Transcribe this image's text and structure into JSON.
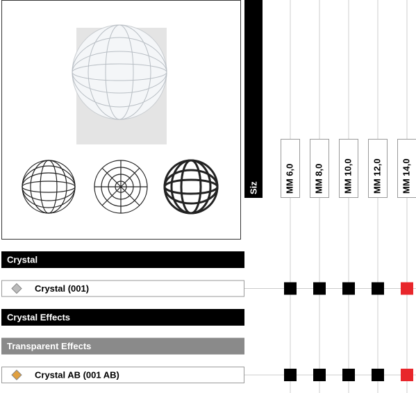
{
  "size_header": "Siz",
  "sizes": [
    "MM 6,0",
    "MM 8,0",
    "MM 10,0",
    "MM 12,0",
    "MM 14,0"
  ],
  "rows": [
    {
      "label": "Crystal",
      "color": "#000000"
    },
    {
      "label": "Crystal (001)",
      "cells": [
        "#000000",
        "#000000",
        "#000000",
        "#000000",
        "#e8262b"
      ]
    },
    {
      "label": "Crystal Effects",
      "color": "#000000"
    },
    {
      "label": "Transparent Effects",
      "color": "#8a8a8a"
    },
    {
      "label": "Crystal AB (001 AB)",
      "cells": [
        "#000000",
        "#000000",
        "#000000",
        "#000000",
        "#e8262b"
      ]
    }
  ]
}
